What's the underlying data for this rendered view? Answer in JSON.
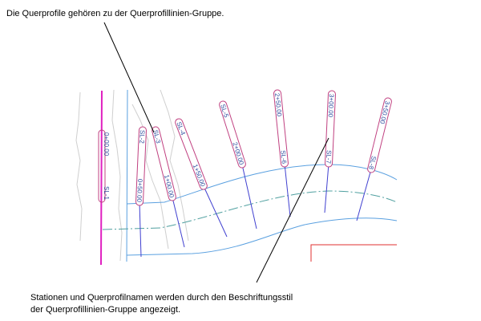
{
  "callouts": {
    "top": "Die Querprofile gehören zu der Querprofillinien-Gruppe.",
    "bottom_line1": "Stationen und Querprofilnamen werden durch den Beschriftungsstil",
    "bottom_line2": "der Querprofillinien-Gruppe angezeigt."
  },
  "alignment_label": {
    "station": "0+00.00",
    "name": "SL-1"
  },
  "sample_lines": [
    {
      "name": "SL-2",
      "station": "0+50.00"
    },
    {
      "name": "SL-3",
      "station": "1+00.00"
    },
    {
      "name": "SL-4",
      "station": "1+50.00"
    },
    {
      "name": "SL-5",
      "station": "2+00.00"
    },
    {
      "name": "SL-6",
      "station": "2+50.00"
    },
    {
      "name": "SL-7",
      "station": "3+00.00"
    },
    {
      "name": "SL-8",
      "station": "3+50.00"
    }
  ],
  "colors": {
    "label_frame": "#c04080",
    "section_line": "#4040d0",
    "road_edge": "#5aa0e0",
    "centerline": "#50a0a0",
    "alignment": "#e020c0",
    "property": "#e03030",
    "contour": "#c8c8c8"
  }
}
